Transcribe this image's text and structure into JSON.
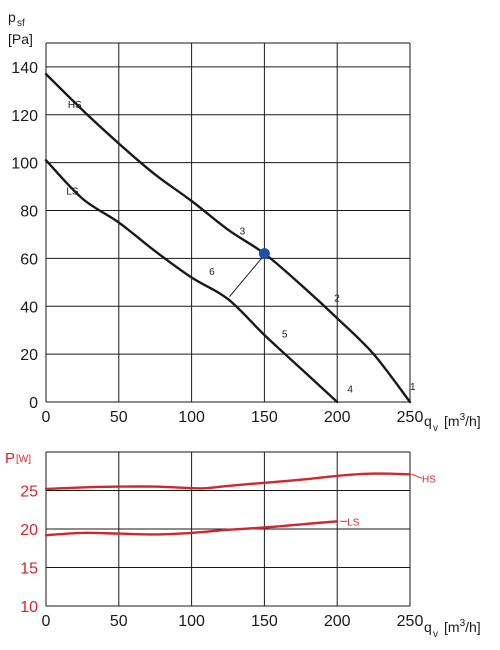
{
  "colors": {
    "curve": "#1a1a1a",
    "power": "#d0262e",
    "marker": "#1f4fa8",
    "grid": "#1a1a1a"
  },
  "chart_data": [
    {
      "type": "line",
      "ylabel": "p",
      "ylabel_sub": "sf",
      "yunit": "[Pa]",
      "xlabel": "q",
      "xlabel_sub": "v",
      "xunit_pre": "[m",
      "xunit_sup": "3",
      "xunit_post": "/h]",
      "xlim": [
        0,
        250
      ],
      "ylim": [
        0,
        150
      ],
      "x_ticks": [
        "0",
        "50",
        "100",
        "150",
        "200",
        "250"
      ],
      "y_ticks": [
        "0",
        "20",
        "40",
        "60",
        "80",
        "100",
        "120",
        "140"
      ],
      "grid": true,
      "series": [
        {
          "name": "HS",
          "x": [
            0,
            25,
            50,
            75,
            100,
            125,
            150,
            175,
            200,
            225,
            250
          ],
          "y": [
            137,
            122,
            108,
            95,
            84,
            72,
            62,
            49,
            35,
            20,
            0
          ]
        },
        {
          "name": "LS",
          "x": [
            0,
            25,
            50,
            75,
            100,
            125,
            150,
            175,
            200
          ],
          "y": [
            101,
            85,
            75,
            63,
            52,
            43,
            28,
            14,
            0
          ]
        }
      ],
      "operating_point": {
        "x": 150,
        "y": 62
      },
      "annotations": [
        {
          "text": "1",
          "x": 250,
          "y": 5
        },
        {
          "text": "2",
          "x": 198,
          "y": 42
        },
        {
          "text": "3",
          "x": 133,
          "y": 70
        },
        {
          "text": "4",
          "x": 207,
          "y": 4
        },
        {
          "text": "5",
          "x": 162,
          "y": 27
        },
        {
          "text": "6",
          "x": 112,
          "y": 53
        }
      ]
    },
    {
      "type": "line",
      "ylabel": "P",
      "yunit": "[W]",
      "xlabel": "q",
      "xlabel_sub": "v",
      "xunit_pre": "[m",
      "xunit_sup": "3",
      "xunit_post": "/h]",
      "xlim": [
        0,
        250
      ],
      "ylim": [
        10,
        30
      ],
      "x_ticks": [
        "0",
        "50",
        "100",
        "150",
        "200",
        "250"
      ],
      "y_ticks": [
        "10",
        "15",
        "20",
        "25"
      ],
      "grid": true,
      "series": [
        {
          "name": "HS",
          "x": [
            0,
            25,
            50,
            75,
            100,
            110,
            125,
            150,
            175,
            200,
            225,
            250
          ],
          "y": [
            25.2,
            25.4,
            25.5,
            25.5,
            25.3,
            25.3,
            25.6,
            26.0,
            26.4,
            26.9,
            27.2,
            27.1
          ]
        },
        {
          "name": "LS",
          "x": [
            0,
            25,
            50,
            75,
            100,
            125,
            150,
            175,
            200
          ],
          "y": [
            19.2,
            19.5,
            19.4,
            19.3,
            19.5,
            19.9,
            20.2,
            20.6,
            21.0
          ]
        }
      ]
    }
  ]
}
